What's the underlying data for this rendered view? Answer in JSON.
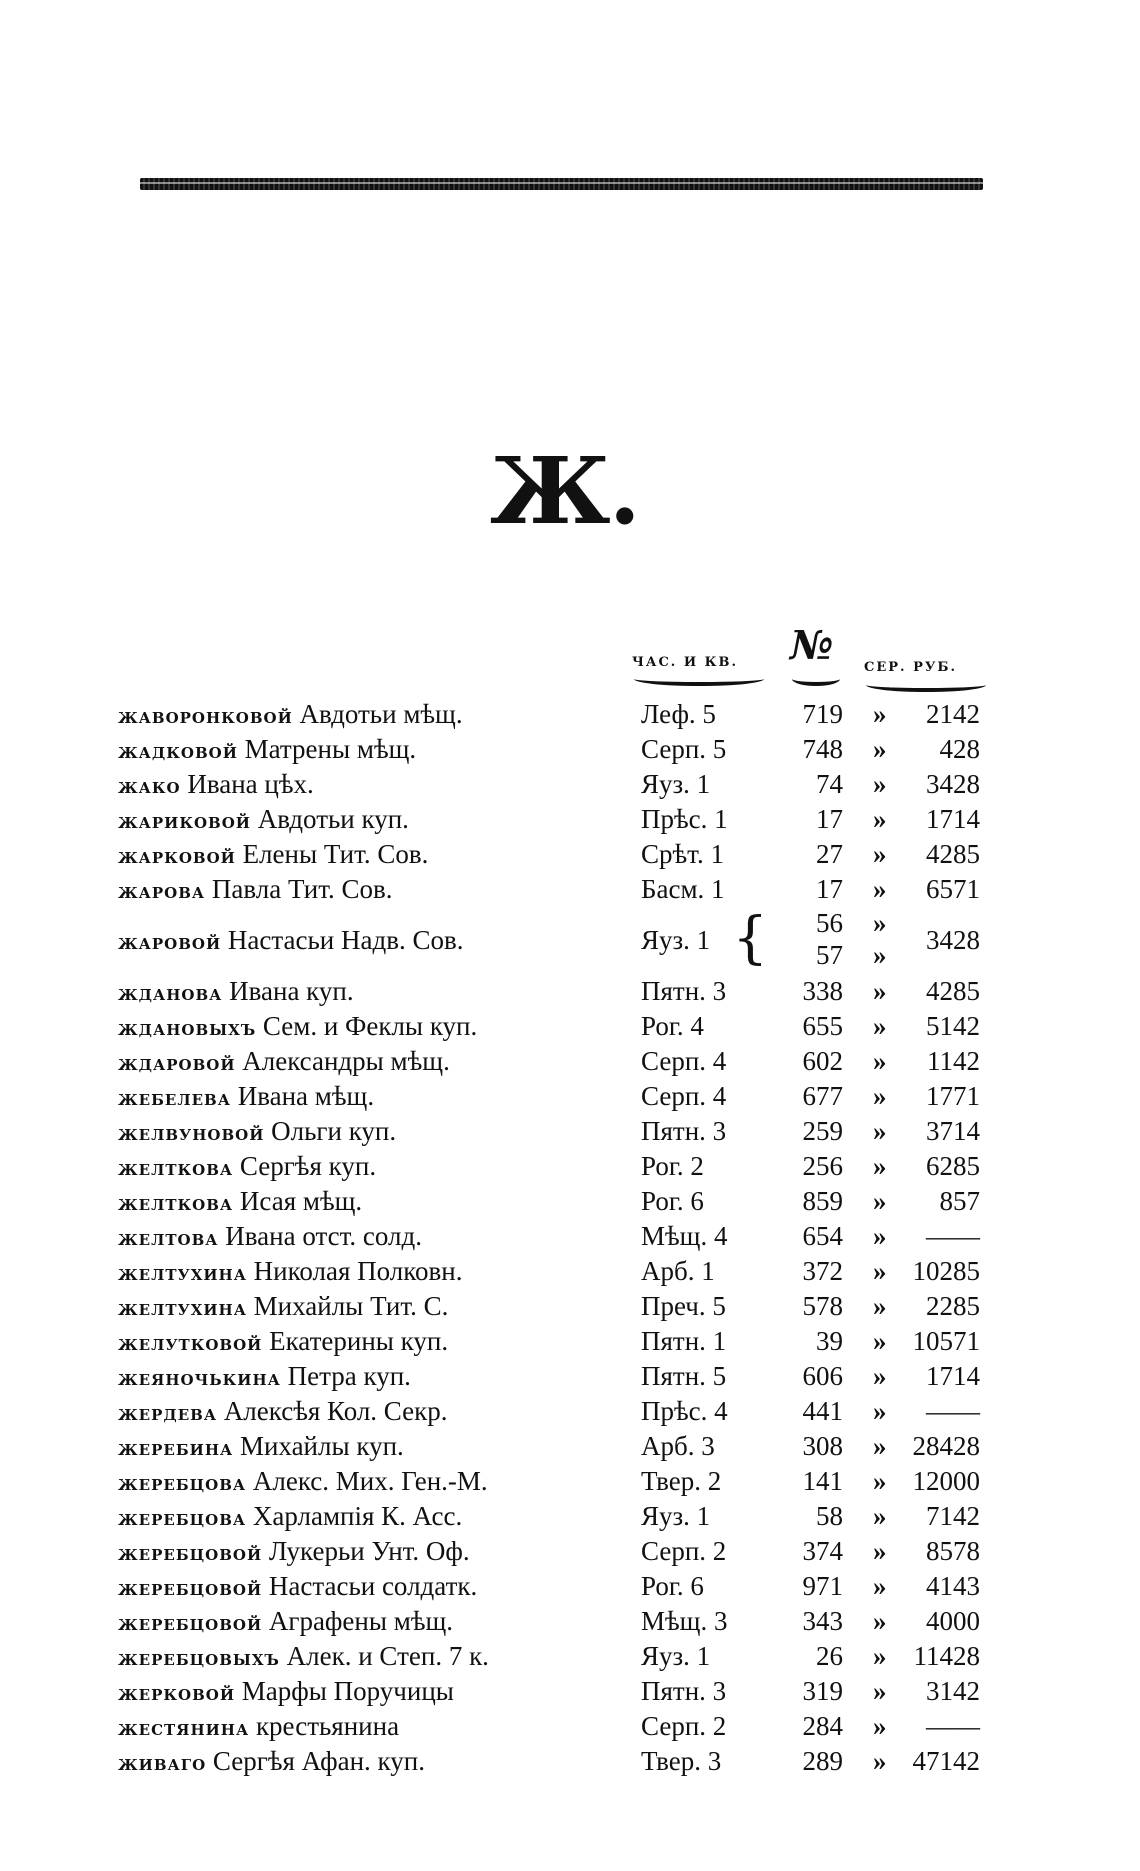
{
  "letter_heading": "Ж.",
  "column_headers": {
    "part": "ЧАС. И КВ.",
    "number": "№",
    "amount": "СЕР. РУБ."
  },
  "rows": [
    {
      "surname": "жаворонковой",
      "rest": "Авдотьи мѣщ.",
      "part": "Леф. 5",
      "numbers": [
        "719"
      ],
      "marks": [
        "»"
      ],
      "amount": "2142"
    },
    {
      "surname": "жадковой",
      "rest": "Матрены мѣщ.",
      "part": "Серп. 5",
      "numbers": [
        "748"
      ],
      "marks": [
        "»"
      ],
      "amount": "428"
    },
    {
      "surname": "жако",
      "rest": "Ивана цѣх.",
      "part": "Яуз. 1",
      "numbers": [
        "74"
      ],
      "marks": [
        "»"
      ],
      "amount": "3428"
    },
    {
      "surname": "жариковой",
      "rest": "Авдотьи куп.",
      "part": "Прѣс. 1",
      "numbers": [
        "17"
      ],
      "marks": [
        "»"
      ],
      "amount": "1714"
    },
    {
      "surname": "жарковой",
      "rest": "Елены Тит. Сов.",
      "part": "Срѣт. 1",
      "numbers": [
        "27"
      ],
      "marks": [
        "»"
      ],
      "amount": "4285"
    },
    {
      "surname": "жарова",
      "rest": "Павла Тит. Сов.",
      "part": "Басм. 1",
      "numbers": [
        "17"
      ],
      "marks": [
        "»"
      ],
      "amount": "6571"
    },
    {
      "surname": "жаровой",
      "rest": "Настасьи Надв. Сов.",
      "part": "Яуз. 1",
      "numbers": [
        "56",
        "57"
      ],
      "marks": [
        "»",
        "»"
      ],
      "amount": "3428"
    },
    {
      "surname": "жданова",
      "rest": "Ивана куп.",
      "part": "Пятн. 3",
      "numbers": [
        "338"
      ],
      "marks": [
        "»"
      ],
      "amount": "4285"
    },
    {
      "surname": "ждановыхъ",
      "rest": "Сем. и Феклы куп.",
      "part": "Рог. 4",
      "numbers": [
        "655"
      ],
      "marks": [
        "»"
      ],
      "amount": "5142"
    },
    {
      "surname": "ждаровой",
      "rest": "Александры мѣщ.",
      "part": "Серп. 4",
      "numbers": [
        "602"
      ],
      "marks": [
        "»"
      ],
      "amount": "1142"
    },
    {
      "surname": "жебелева",
      "rest": "Ивана мѣщ.",
      "part": "Серп. 4",
      "numbers": [
        "677"
      ],
      "marks": [
        "»"
      ],
      "amount": "1771"
    },
    {
      "surname": "желвуновой",
      "rest": "Ольги куп.",
      "part": "Пятн. 3",
      "numbers": [
        "259"
      ],
      "marks": [
        "»"
      ],
      "amount": "3714"
    },
    {
      "surname": "желткова",
      "rest": "Сергѣя куп.",
      "part": "Рог. 2",
      "numbers": [
        "256"
      ],
      "marks": [
        "»"
      ],
      "amount": "6285"
    },
    {
      "surname": "желткова",
      "rest": "Исая мѣщ.",
      "part": "Рог. 6",
      "numbers": [
        "859"
      ],
      "marks": [
        "»"
      ],
      "amount": "857"
    },
    {
      "surname": "желтова",
      "rest": "Ивана отст. солд.",
      "part": "Мѣщ. 4",
      "numbers": [
        "654"
      ],
      "marks": [
        "»"
      ],
      "amount": "——"
    },
    {
      "surname": "желтухина",
      "rest": "Николая Полковн.",
      "part": "Арб. 1",
      "numbers": [
        "372"
      ],
      "marks": [
        "»"
      ],
      "amount": "10285"
    },
    {
      "surname": "желтухина",
      "rest": "Михайлы Тит. С.",
      "part": "Преч. 5",
      "numbers": [
        "578"
      ],
      "marks": [
        "»"
      ],
      "amount": "2285"
    },
    {
      "surname": "желутковой",
      "rest": "Екатерины куп.",
      "part": "Пятн. 1",
      "numbers": [
        "39"
      ],
      "marks": [
        "»"
      ],
      "amount": "10571"
    },
    {
      "surname": "жеяночькина",
      "rest": "Петра куп.",
      "part": "Пятн. 5",
      "numbers": [
        "606"
      ],
      "marks": [
        "»"
      ],
      "amount": "1714"
    },
    {
      "surname": "жердева",
      "rest": "Алексѣя Кол. Секр.",
      "part": "Прѣс. 4",
      "numbers": [
        "441"
      ],
      "marks": [
        "»"
      ],
      "amount": "——"
    },
    {
      "surname": "жеребина",
      "rest": "Михайлы куп.",
      "part": "Арб. 3",
      "numbers": [
        "308"
      ],
      "marks": [
        "»"
      ],
      "amount": "28428"
    },
    {
      "surname": "жеребцова",
      "rest": "Алекс. Мих. Ген.-М.",
      "part": "Твер. 2",
      "numbers": [
        "141"
      ],
      "marks": [
        "»"
      ],
      "amount": "12000"
    },
    {
      "surname": "жеребцова",
      "rest": "Харлампія К. Асс.",
      "part": "Яуз. 1",
      "numbers": [
        "58"
      ],
      "marks": [
        "»"
      ],
      "amount": "7142"
    },
    {
      "surname": "жеребцовой",
      "rest": "Лукерьи Унт. Оф.",
      "part": "Серп. 2",
      "numbers": [
        "374"
      ],
      "marks": [
        "»"
      ],
      "amount": "8578"
    },
    {
      "surname": "жеребцовой",
      "rest": "Настасьи солдатк.",
      "part": "Рог. 6",
      "numbers": [
        "971"
      ],
      "marks": [
        "»"
      ],
      "amount": "4143"
    },
    {
      "surname": "жеребцовой",
      "rest": "Аграфены мѣщ.",
      "part": "Мѣщ. 3",
      "numbers": [
        "343"
      ],
      "marks": [
        "»"
      ],
      "amount": "4000"
    },
    {
      "surname": "жеребцовыхъ",
      "rest": "Алек. и Степ. 7 к.",
      "part": "Яуз. 1",
      "numbers": [
        "26"
      ],
      "marks": [
        "»"
      ],
      "amount": "11428"
    },
    {
      "surname": "жерковой",
      "rest": "Марфы Поручицы",
      "part": "Пятн. 3",
      "numbers": [
        "319"
      ],
      "marks": [
        "»"
      ],
      "amount": "3142"
    },
    {
      "surname": "жестянина",
      "rest": "крестьянина",
      "part": "Серп. 2",
      "numbers": [
        "284"
      ],
      "marks": [
        "»"
      ],
      "amount": "——"
    },
    {
      "surname": "живаго",
      "rest": "Сергѣя Афан. куп.",
      "part": "Твер. 3",
      "numbers": [
        "289"
      ],
      "marks": [
        "»"
      ],
      "amount": "47142"
    }
  ]
}
